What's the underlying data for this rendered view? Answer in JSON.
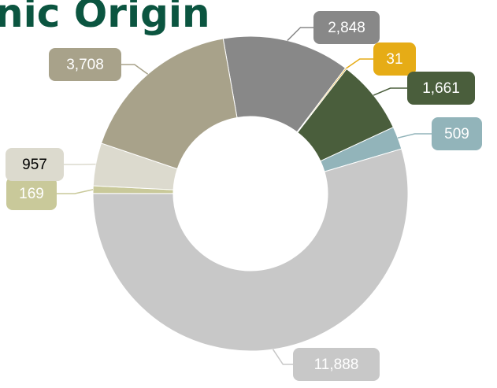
{
  "chart_data": {
    "type": "donut",
    "title": "nic Origin",
    "values": [
      2848,
      31,
      1661,
      509,
      11888,
      169,
      957,
      3708
    ],
    "value_labels": [
      "2,848",
      "31",
      "1,661",
      "509",
      "11,888",
      "169",
      "957",
      "3,708"
    ],
    "colors": [
      "#888888",
      "#e6ac16",
      "#4a5e3c",
      "#92b4ba",
      "#c8c8c8",
      "#c9c99a",
      "#dcdace",
      "#a8a28a"
    ],
    "label_colors": [
      "#ffffff",
      "#ffffff",
      "#ffffff",
      "#ffffff",
      "#ffffff",
      "#ffffff",
      "#000000",
      "#ffffff"
    ]
  }
}
